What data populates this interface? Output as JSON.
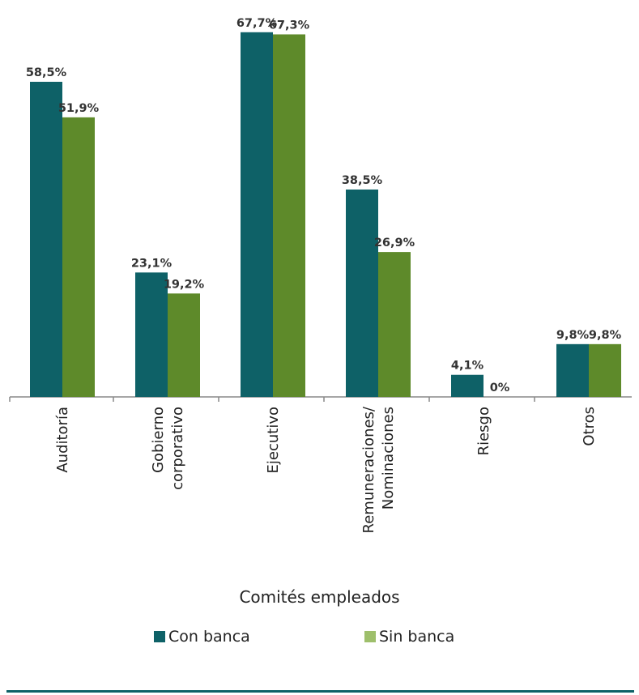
{
  "chart_data": {
    "type": "bar",
    "title": "",
    "xlabel": "Comités empleados",
    "ylabel": "",
    "ylim": [
      0,
      70
    ],
    "grid": false,
    "legend_position": "bottom",
    "categories": [
      [
        "Auditoría"
      ],
      [
        "Gobierno",
        "corporativo"
      ],
      [
        "Ejecutivo"
      ],
      [
        "Remuneraciones/",
        "Nominaciones"
      ],
      [
        "Riesgo"
      ],
      [
        "Otros"
      ]
    ],
    "series": [
      {
        "name": "Con banca",
        "color": "#0e6167",
        "values": [
          58.5,
          23.1,
          67.7,
          38.5,
          4.1,
          9.8
        ],
        "labels": [
          "58,5%",
          "23,1%",
          "67,7%",
          "38,5%",
          "4,1%",
          "9,8%"
        ]
      },
      {
        "name": "Sin banca",
        "color": "#5e8a2a",
        "values": [
          51.9,
          19.2,
          67.3,
          26.9,
          0,
          9.8
        ],
        "labels": [
          "51,9%",
          "19,2%",
          "67,3%",
          "26,9%",
          "0%",
          "9,8%"
        ]
      }
    ]
  },
  "legend_swatch_colors": [
    "#0e6167",
    "#9ebf6b"
  ]
}
